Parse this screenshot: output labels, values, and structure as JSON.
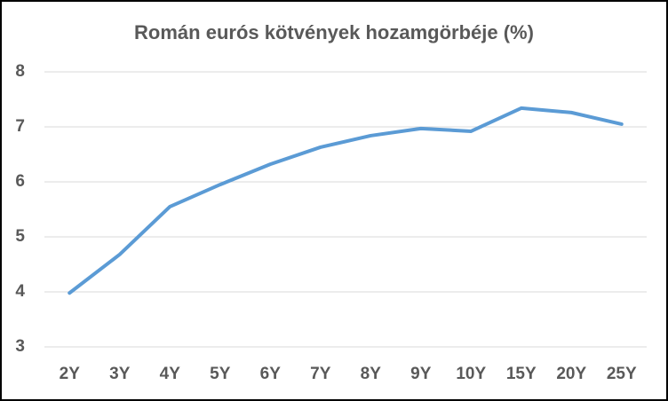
{
  "chart_data": {
    "type": "line",
    "title": "Román eurós kötvények hozamgörbéje (%)",
    "categories": [
      "2Y",
      "3Y",
      "4Y",
      "5Y",
      "6Y",
      "7Y",
      "8Y",
      "9Y",
      "10Y",
      "15Y",
      "20Y",
      "25Y"
    ],
    "values": [
      3.98,
      4.68,
      5.55,
      5.95,
      6.32,
      6.63,
      6.84,
      6.97,
      6.92,
      7.34,
      7.26,
      7.05
    ],
    "color": "#5b9bd5",
    "ylim": [
      3,
      8
    ],
    "yticks": [
      3,
      4,
      5,
      6,
      7,
      8
    ],
    "grid": true
  }
}
